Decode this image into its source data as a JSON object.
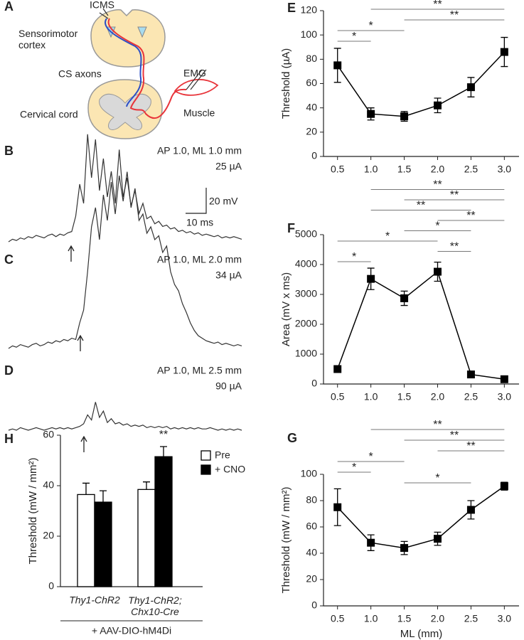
{
  "diagram": {
    "panel": "A",
    "icms": "ICMS",
    "cortex": "Sensorimotor\ncortex",
    "axons": "CS axons",
    "emg": "EMG",
    "cord": "Cervical cord",
    "muscle": "Muscle"
  },
  "chart_data": [
    {
      "type": "trace",
      "panel": "B",
      "annotations": [
        "AP 1.0, ML 1.0 mm",
        "25 µA"
      ],
      "color": "#333333",
      "scale_bar": {
        "y_label": "20 mV",
        "x_label": "10 ms"
      },
      "values": [
        0,
        2,
        1,
        3,
        2,
        4,
        3,
        5,
        4,
        3,
        5,
        6,
        4,
        6,
        5,
        7,
        8,
        20,
        45,
        30,
        84,
        50,
        80,
        40,
        65,
        35,
        55,
        30,
        72,
        35,
        50,
        28,
        40,
        22,
        30,
        18,
        20,
        14,
        16,
        12,
        13,
        10,
        11,
        8,
        9,
        7,
        8,
        6,
        7,
        5,
        6,
        5,
        4,
        5,
        3,
        4,
        3,
        4,
        3,
        2
      ]
    },
    {
      "type": "trace",
      "panel": "C",
      "annotations": [
        "AP 1.0, ML 2.0 mm",
        "34 µA"
      ],
      "color": "#333333",
      "values": [
        0,
        2,
        1,
        3,
        2,
        1,
        3,
        4,
        2,
        3,
        5,
        4,
        6,
        5,
        7,
        6,
        8,
        7,
        20,
        30,
        60,
        95,
        110,
        85,
        120,
        100,
        130,
        105,
        135,
        115,
        138,
        110,
        125,
        100,
        105,
        90,
        95,
        85,
        88,
        75,
        80,
        60,
        50,
        45,
        35,
        28,
        20,
        14,
        10,
        8,
        6,
        5,
        4,
        5,
        3,
        4,
        3,
        2,
        3,
        2
      ]
    },
    {
      "type": "trace",
      "panel": "D",
      "annotations": [
        "AP 1.0, ML 2.5 mm",
        "90 µA"
      ],
      "color": "#333333",
      "values": [
        0,
        1,
        0,
        2,
        1,
        0,
        1,
        2,
        1,
        0,
        1,
        2,
        1,
        2,
        1,
        2,
        1,
        2,
        3,
        5,
        12,
        8,
        22,
        10,
        15,
        6,
        9,
        5,
        6,
        4,
        5,
        3,
        4,
        3,
        4,
        2,
        3,
        2,
        3,
        2,
        3,
        1,
        2,
        1,
        2,
        1,
        2,
        1,
        2,
        1,
        1,
        2,
        1,
        0,
        1,
        0,
        1,
        0,
        1,
        0
      ]
    },
    {
      "type": "line",
      "panel": "E",
      "ylabel": "Threshold (µA)",
      "color": "#000000",
      "x": [
        0.5,
        1,
        1.5,
        2,
        2.5,
        3
      ],
      "values": [
        75,
        35,
        33,
        42,
        57,
        86
      ],
      "errors": [
        14,
        5,
        4,
        6,
        8,
        12
      ],
      "xlim": [
        0.29,
        3.22
      ],
      "xticks": [
        0.5,
        {
          "value": 1,
          "label": "1.0"
        },
        1.5,
        {
          "value": 2,
          "label": "2.0"
        },
        2.5,
        {
          "value": 3,
          "label": "3.0"
        }
      ],
      "ylim": [
        0,
        120
      ],
      "yticks": [
        0,
        20,
        40,
        60,
        80,
        100,
        120
      ],
      "significance": [
        {
          "x": [
            0.5,
            1
          ],
          "label": "*"
        },
        {
          "x": [
            0.5,
            1.5
          ],
          "label": "*"
        },
        {
          "x": [
            1.5,
            3
          ],
          "label": "**"
        },
        {
          "x": [
            1,
            3
          ],
          "label": "**"
        }
      ]
    },
    {
      "type": "line",
      "panel": "F",
      "ylabel": "Area (mV x ms)",
      "color": "#000000",
      "x": [
        0.5,
        1,
        1.5,
        2,
        2.5,
        3
      ],
      "values": [
        500,
        3520,
        2870,
        3760,
        320,
        160
      ],
      "errors": [
        60,
        360,
        240,
        320,
        100,
        40
      ],
      "xlim": [
        0.29,
        3.22
      ],
      "xticks": [
        0.5,
        {
          "value": 1,
          "label": "1.0"
        },
        1.5,
        {
          "value": 2,
          "label": "2.0"
        },
        2.5,
        {
          "value": 3,
          "label": "3.0"
        }
      ],
      "ylim": [
        0,
        5000
      ],
      "yticks": [
        0,
        1000,
        2000,
        3000,
        4000,
        5000
      ],
      "significance": [
        {
          "x": [
            0.5,
            1
          ],
          "label": "*"
        },
        {
          "x": [
            2,
            2.5
          ],
          "label": "**"
        },
        {
          "x": [
            0.5,
            2
          ],
          "label": "*"
        },
        {
          "x": [
            1.5,
            2.5
          ],
          "label": "*"
        },
        {
          "x": [
            2,
            3
          ],
          "label": "**"
        },
        {
          "x": [
            1,
            2.5
          ],
          "label": "**"
        },
        {
          "x": [
            1.5,
            3
          ],
          "label": "**"
        },
        {
          "x": [
            1,
            3
          ],
          "label": "**"
        }
      ]
    },
    {
      "type": "line",
      "panel": "G",
      "ylabel": "Threshold (mW / mm²)",
      "xlabel": "ML (mm)",
      "color": "#000000",
      "x": [
        0.5,
        1,
        1.5,
        2,
        2.5,
        3
      ],
      "values": [
        75,
        48,
        44,
        51,
        73,
        91
      ],
      "errors": [
        14,
        6,
        5,
        5,
        7,
        3
      ],
      "xlim": [
        0.29,
        3.22
      ],
      "xticks": [
        0.5,
        {
          "value": 1,
          "label": "1.0"
        },
        1.5,
        {
          "value": 2,
          "label": "2.0"
        },
        2.5,
        {
          "value": 3,
          "label": "3.0"
        }
      ],
      "ylim": [
        0,
        100
      ],
      "yticks": [
        0,
        20,
        40,
        60,
        80,
        100
      ],
      "significance": [
        {
          "x": [
            1.5,
            2.5
          ],
          "label": "*"
        },
        {
          "x": [
            0.5,
            1
          ],
          "label": "*"
        },
        {
          "x": [
            0.5,
            1.5
          ],
          "label": "*"
        },
        {
          "x": [
            2,
            3
          ],
          "label": "**"
        },
        {
          "x": [
            1.5,
            3
          ],
          "label": "**"
        },
        {
          "x": [
            1,
            3
          ],
          "label": "**"
        }
      ]
    },
    {
      "type": "bar",
      "panel": "H",
      "ylabel": "Threshold (mW / mm²)",
      "xlabel": "+ AAV-DIO-hM4Di",
      "categories": [
        "Thy1-ChR2",
        "Thy1-ChR2;\nChx10-Cre"
      ],
      "series": [
        {
          "name": "Pre",
          "color": "#ffffff",
          "values": [
            36.5,
            38.5
          ],
          "errors": [
            4.5,
            3
          ]
        },
        {
          "name": "+ CNO",
          "color": "#000000",
          "values": [
            33.5,
            51.5
          ],
          "errors": [
            4.5,
            4
          ],
          "significance": [
            null,
            "**"
          ]
        }
      ],
      "ylim": [
        0,
        60
      ],
      "yticks": [
        0,
        20,
        40,
        60
      ]
    }
  ]
}
